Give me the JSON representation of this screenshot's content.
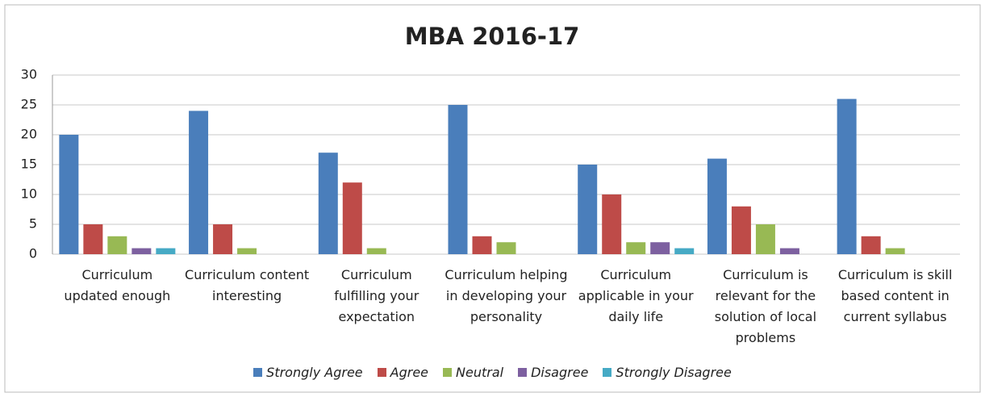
{
  "chart_data": {
    "type": "bar",
    "title": "MBA 2016-17",
    "categories": [
      "Curriculum updated enough",
      "Curriculum content interesting",
      "Curriculum fulfilling your expectation",
      "Curriculum helping in developing your personality",
      "Curriculum applicable in your daily life",
      "Curriculum is relevant for the solution of local problems",
      "Curriculum is skill based content in current syllabus"
    ],
    "series": [
      {
        "name": "Strongly Agree",
        "color": "#4a7ebb",
        "values": [
          20,
          24,
          17,
          25,
          15,
          16,
          26
        ]
      },
      {
        "name": "Agree",
        "color": "#be4b48",
        "values": [
          5,
          5,
          12,
          3,
          10,
          8,
          3
        ]
      },
      {
        "name": "Neutral",
        "color": "#98b954",
        "values": [
          3,
          1,
          1,
          2,
          2,
          5,
          1
        ]
      },
      {
        "name": "Disagree",
        "color": "#7d60a0",
        "values": [
          1,
          0,
          0,
          0,
          2,
          1,
          0
        ]
      },
      {
        "name": "Strongly Disagree",
        "color": "#46aac5",
        "values": [
          1,
          0,
          0,
          0,
          1,
          0,
          0
        ]
      }
    ],
    "ylim": [
      0,
      30
    ],
    "yticks": [
      0,
      5,
      10,
      15,
      20,
      25,
      30
    ],
    "grid": true,
    "legend": "bottom"
  }
}
